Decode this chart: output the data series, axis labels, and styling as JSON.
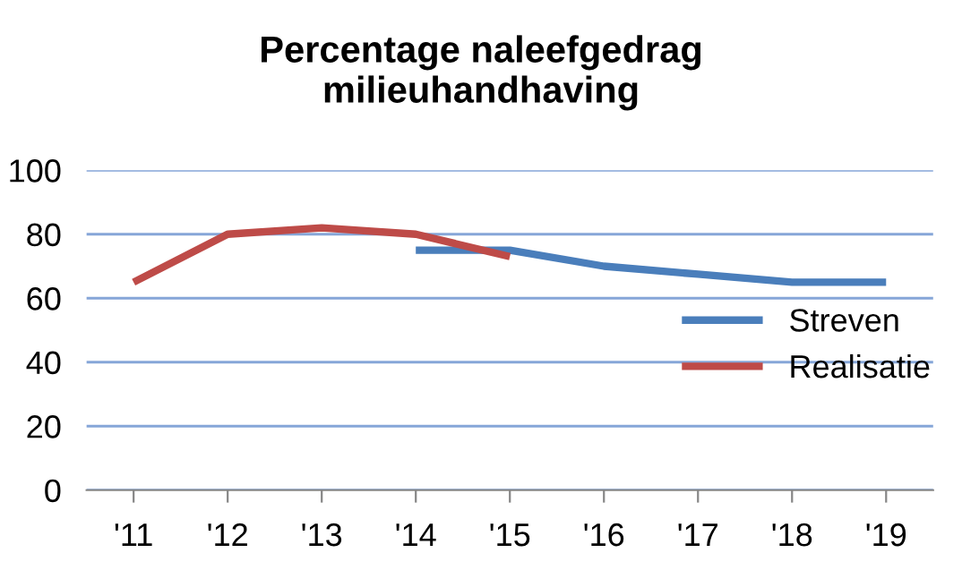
{
  "chart_data": {
    "type": "line",
    "title": "Percentage naleefgedrag\nmilieuhandhaving",
    "categories": [
      "'11",
      "'12",
      "'13",
      "'14",
      "'15",
      "'16",
      "'17",
      "'18",
      "'19"
    ],
    "series": [
      {
        "name": "Streven",
        "color": "#4a7ebb",
        "values": [
          null,
          null,
          null,
          75,
          75,
          70,
          67.5,
          65,
          65
        ]
      },
      {
        "name": "Realisatie",
        "color": "#be4b48",
        "values": [
          65,
          80,
          82,
          80,
          73,
          null,
          null,
          null,
          null
        ]
      }
    ],
    "ylim": [
      0,
      100
    ],
    "yticks": [
      0,
      20,
      40,
      60,
      80,
      100
    ],
    "grid": "y",
    "legend": "right",
    "marker": "none",
    "line_style": "solid"
  }
}
